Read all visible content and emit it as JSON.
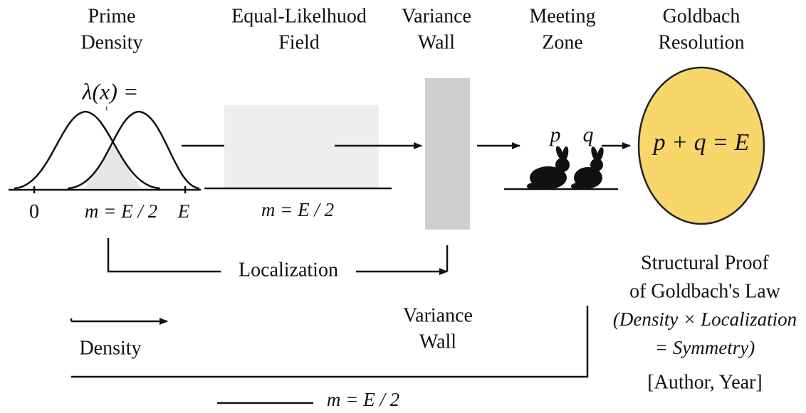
{
  "stages": [
    {
      "title": [
        "Prime",
        "Density"
      ]
    },
    {
      "title": [
        "Equal-Likelhuod",
        "Field"
      ]
    },
    {
      "title": [
        "Variance",
        "Wall"
      ]
    },
    {
      "title": [
        "Meeting",
        "Zone"
      ]
    },
    {
      "title": [
        "Goldbach",
        "Resolution"
      ]
    }
  ],
  "density_formula": "λ(x) =",
  "formula_note": "t",
  "axis_labels": [
    "0",
    "m = E / 2",
    "E"
  ],
  "field_label": "m = E / 2",
  "meeting_labels": [
    "p",
    "q"
  ],
  "resolution_equation": "p + q = E",
  "localization_label": "Localization",
  "density_label": "Density",
  "wall_label": [
    "Variance",
    "Wall"
  ],
  "proof": {
    "title": [
      "Structural Proof",
      "of Goldbach's Law"
    ],
    "formula": [
      "(Density × Localization",
      "= Symmetry)"
    ],
    "citation": "[Author, Year]"
  },
  "bottom_label": "m = E / 2"
}
